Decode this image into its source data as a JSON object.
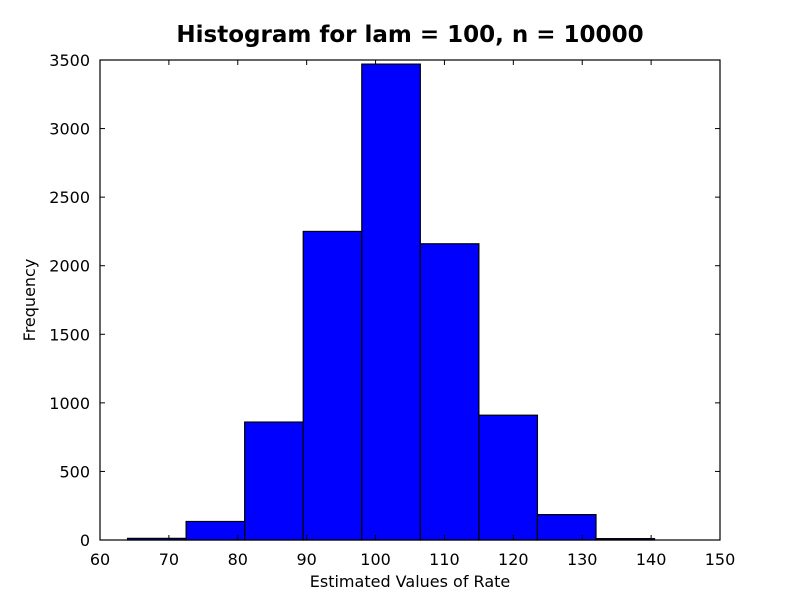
{
  "chart_data": {
    "type": "bar",
    "subtype": "histogram",
    "title": "Histogram for lam = 100, n = 10000",
    "xlabel": "Estimated Values of Rate",
    "ylabel": "Frequency",
    "xlim": [
      60,
      150
    ],
    "ylim": [
      0,
      3500
    ],
    "x_ticks": [
      60,
      70,
      80,
      90,
      100,
      110,
      120,
      130,
      140,
      150
    ],
    "y_ticks": [
      0,
      500,
      1000,
      1500,
      2000,
      2500,
      3000,
      3500
    ],
    "bins": [
      {
        "start": 64.0,
        "end": 72.5,
        "count": 12
      },
      {
        "start": 72.5,
        "end": 81.0,
        "count": 135
      },
      {
        "start": 81.0,
        "end": 89.5,
        "count": 860
      },
      {
        "start": 89.5,
        "end": 98.0,
        "count": 2250
      },
      {
        "start": 98.0,
        "end": 106.5,
        "count": 3470
      },
      {
        "start": 106.5,
        "end": 115.0,
        "count": 2160
      },
      {
        "start": 115.0,
        "end": 123.5,
        "count": 910
      },
      {
        "start": 123.5,
        "end": 132.0,
        "count": 185
      },
      {
        "start": 132.0,
        "end": 140.5,
        "count": 10
      }
    ],
    "bar_color": "#0000ff",
    "edge_color": "#000000",
    "grid": false,
    "legend": "none"
  }
}
